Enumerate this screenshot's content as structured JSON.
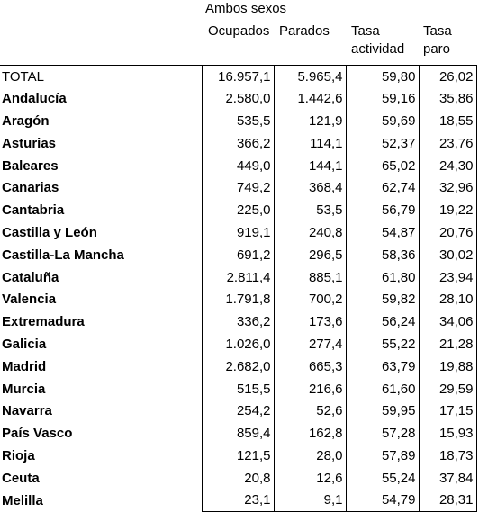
{
  "header": {
    "group_title": "Ambos sexos",
    "col1": "Ocupados",
    "col2": "Parados",
    "col3_line1": "Tasa",
    "col3_line2": "actividad",
    "col4_line1": "Tasa",
    "col4_line2": "paro"
  },
  "rows": [
    {
      "name": "TOTAL",
      "bold": false,
      "ocupados": "16.957,1",
      "parados": "5.965,4",
      "tasa_actividad": "59,80",
      "tasa_paro": "26,02"
    },
    {
      "name": "Andalucía",
      "bold": true,
      "ocupados": "2.580,0",
      "parados": "1.442,6",
      "tasa_actividad": "59,16",
      "tasa_paro": "35,86"
    },
    {
      "name": "Aragón",
      "bold": true,
      "ocupados": "535,5",
      "parados": "121,9",
      "tasa_actividad": "59,69",
      "tasa_paro": "18,55"
    },
    {
      "name": "Asturias",
      "bold": true,
      "ocupados": "366,2",
      "parados": "114,1",
      "tasa_actividad": "52,37",
      "tasa_paro": "23,76"
    },
    {
      "name": "Baleares",
      "bold": true,
      "ocupados": "449,0",
      "parados": "144,1",
      "tasa_actividad": "65,02",
      "tasa_paro": "24,30"
    },
    {
      "name": "Canarias",
      "bold": true,
      "ocupados": "749,2",
      "parados": "368,4",
      "tasa_actividad": "62,74",
      "tasa_paro": "32,96"
    },
    {
      "name": "Cantabria",
      "bold": true,
      "ocupados": "225,0",
      "parados": "53,5",
      "tasa_actividad": "56,79",
      "tasa_paro": "19,22"
    },
    {
      "name": "Castilla y León",
      "bold": true,
      "ocupados": "919,1",
      "parados": "240,8",
      "tasa_actividad": "54,87",
      "tasa_paro": "20,76"
    },
    {
      "name": "Castilla-La Mancha",
      "bold": true,
      "ocupados": "691,2",
      "parados": "296,5",
      "tasa_actividad": "58,36",
      "tasa_paro": "30,02"
    },
    {
      "name": "Cataluña",
      "bold": true,
      "ocupados": "2.811,4",
      "parados": "885,1",
      "tasa_actividad": "61,80",
      "tasa_paro": "23,94"
    },
    {
      "name": "Valencia",
      "bold": true,
      "ocupados": "1.791,8",
      "parados": "700,2",
      "tasa_actividad": "59,82",
      "tasa_paro": "28,10"
    },
    {
      "name": "Extremadura",
      "bold": true,
      "ocupados": "336,2",
      "parados": "173,6",
      "tasa_actividad": "56,24",
      "tasa_paro": "34,06"
    },
    {
      "name": "Galicia",
      "bold": true,
      "ocupados": "1.026,0",
      "parados": "277,4",
      "tasa_actividad": "55,22",
      "tasa_paro": "21,28"
    },
    {
      "name": "Madrid",
      "bold": true,
      "ocupados": "2.682,0",
      "parados": "665,3",
      "tasa_actividad": "63,79",
      "tasa_paro": "19,88"
    },
    {
      "name": "Murcia",
      "bold": true,
      "ocupados": "515,5",
      "parados": "216,6",
      "tasa_actividad": "61,60",
      "tasa_paro": "29,59"
    },
    {
      "name": "Navarra",
      "bold": true,
      "ocupados": "254,2",
      "parados": "52,6",
      "tasa_actividad": "59,95",
      "tasa_paro": "17,15"
    },
    {
      "name": "País Vasco",
      "bold": true,
      "ocupados": "859,4",
      "parados": "162,8",
      "tasa_actividad": "57,28",
      "tasa_paro": "15,93"
    },
    {
      "name": "Rioja",
      "bold": true,
      "ocupados": "121,5",
      "parados": "28,0",
      "tasa_actividad": "57,89",
      "tasa_paro": "18,73"
    },
    {
      "name": "Ceuta",
      "bold": true,
      "ocupados": "20,8",
      "parados": "12,6",
      "tasa_actividad": "55,24",
      "tasa_paro": "37,84"
    },
    {
      "name": "Melilla",
      "bold": true,
      "ocupados": "23,1",
      "parados": "9,1",
      "tasa_actividad": "54,79",
      "tasa_paro": "28,31"
    }
  ]
}
